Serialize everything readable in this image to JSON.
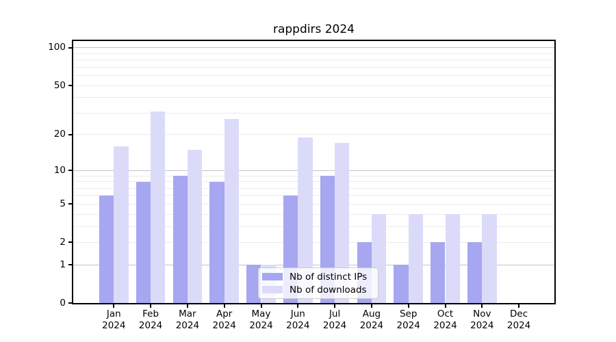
{
  "title": "rappdirs 2024",
  "chart_data": {
    "type": "bar",
    "title": "rappdirs 2024",
    "categories": [
      "Jan",
      "Feb",
      "Mar",
      "Apr",
      "May",
      "Jun",
      "Jul",
      "Aug",
      "Sep",
      "Oct",
      "Nov",
      "Dec"
    ],
    "year": "2024",
    "series": [
      {
        "name": "Nb of distinct IPs",
        "color": "#a6a6f1",
        "values": [
          6,
          8,
          9,
          8,
          1,
          6,
          9,
          2,
          1,
          2,
          2,
          0
        ]
      },
      {
        "name": "Nb of downloads",
        "color": "#dbdbf9",
        "values": [
          16,
          31,
          15,
          27,
          1,
          19,
          17,
          4,
          4,
          4,
          4,
          0
        ]
      }
    ],
    "yticks": [
      0,
      1,
      2,
      5,
      10,
      20,
      50,
      100
    ],
    "scale": "log10(1+x)",
    "ylim": [
      0,
      113
    ],
    "grid": "horizontal major+minor",
    "legend_position": "lower center inside",
    "colors": {
      "major_grid": "#c4c4c4",
      "minor_grid": "#ebebeb",
      "spine": "#000000",
      "background": "#ffffff"
    }
  }
}
